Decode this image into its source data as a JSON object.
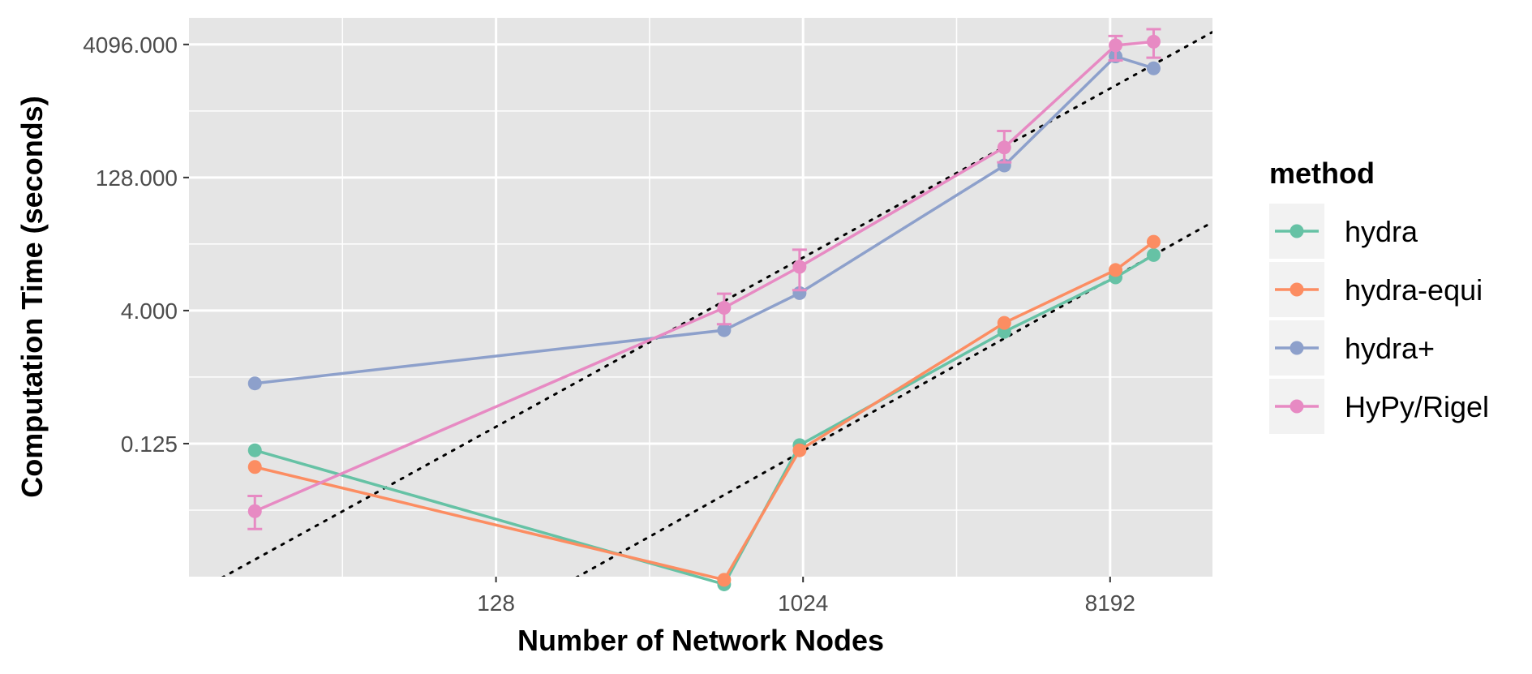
{
  "chart_data": {
    "type": "line",
    "xlabel": "Number of Network Nodes",
    "ylabel": "Computation Time (seconds)",
    "x_scale": "log2",
    "y_scale": "log2",
    "xlim": [
      16,
      16384
    ],
    "ylim": [
      0.00390625,
      8192
    ],
    "x_ticks": [
      128,
      1024,
      8192
    ],
    "x_tick_labels": [
      "128",
      "1024",
      "8192"
    ],
    "y_ticks": [
      0.125,
      4,
      128,
      4096
    ],
    "y_tick_labels": [
      "0.125",
      "4.000",
      "128.000",
      "4096.000"
    ],
    "grid": true,
    "legend": {
      "title": "method",
      "placement": "right"
    },
    "series": [
      {
        "name": "hydra",
        "color": "#66C2A5",
        "points": [
          {
            "x": 25,
            "y": 0.105
          },
          {
            "x": 600,
            "y": 0.0032
          },
          {
            "x": 1000,
            "y": 0.12
          },
          {
            "x": 4000,
            "y": 2.3
          },
          {
            "x": 8500,
            "y": 9.5
          },
          {
            "x": 11000,
            "y": 17
          }
        ]
      },
      {
        "name": "hydra-equi",
        "color": "#FC8D62",
        "points": [
          {
            "x": 25,
            "y": 0.068
          },
          {
            "x": 600,
            "y": 0.0036
          },
          {
            "x": 1000,
            "y": 0.105
          },
          {
            "x": 4000,
            "y": 2.9
          },
          {
            "x": 8500,
            "y": 11.5
          },
          {
            "x": 11000,
            "y": 24
          }
        ]
      },
      {
        "name": "hydra+",
        "color": "#8DA0CB",
        "points": [
          {
            "x": 25,
            "y": 0.6
          },
          {
            "x": 600,
            "y": 2.4
          },
          {
            "x": 1000,
            "y": 6.3
          },
          {
            "x": 4000,
            "y": 175
          },
          {
            "x": 8500,
            "y": 3000
          },
          {
            "x": 11000,
            "y": 2200
          }
        ]
      },
      {
        "name": "HyPy/Rigel",
        "color": "#E78AC3",
        "points": [
          {
            "x": 25,
            "y": 0.0215,
            "err_low": 0.0135,
            "err_high": 0.032
          },
          {
            "x": 600,
            "y": 4.3,
            "err_low": 2.8,
            "err_high": 6.2
          },
          {
            "x": 1000,
            "y": 12.5,
            "err_low": 6.8,
            "err_high": 19.5
          },
          {
            "x": 4000,
            "y": 280,
            "err_low": 190,
            "err_high": 430
          },
          {
            "x": 8500,
            "y": 4000,
            "err_low": 2700,
            "err_high": 5100
          },
          {
            "x": 11000,
            "y": 4400,
            "err_low": 2900,
            "err_high": 6100
          }
        ]
      }
    ],
    "reference_lines": [
      {
        "style": "dotted",
        "color": "#000000",
        "from": {
          "x": 20,
          "y": 0.0038
        },
        "to": {
          "x": 16384,
          "y": 5650
        }
      },
      {
        "style": "dotted",
        "color": "#000000",
        "from": {
          "x": 220,
          "y": 0.0038
        },
        "to": {
          "x": 16384,
          "y": 40
        }
      }
    ]
  }
}
